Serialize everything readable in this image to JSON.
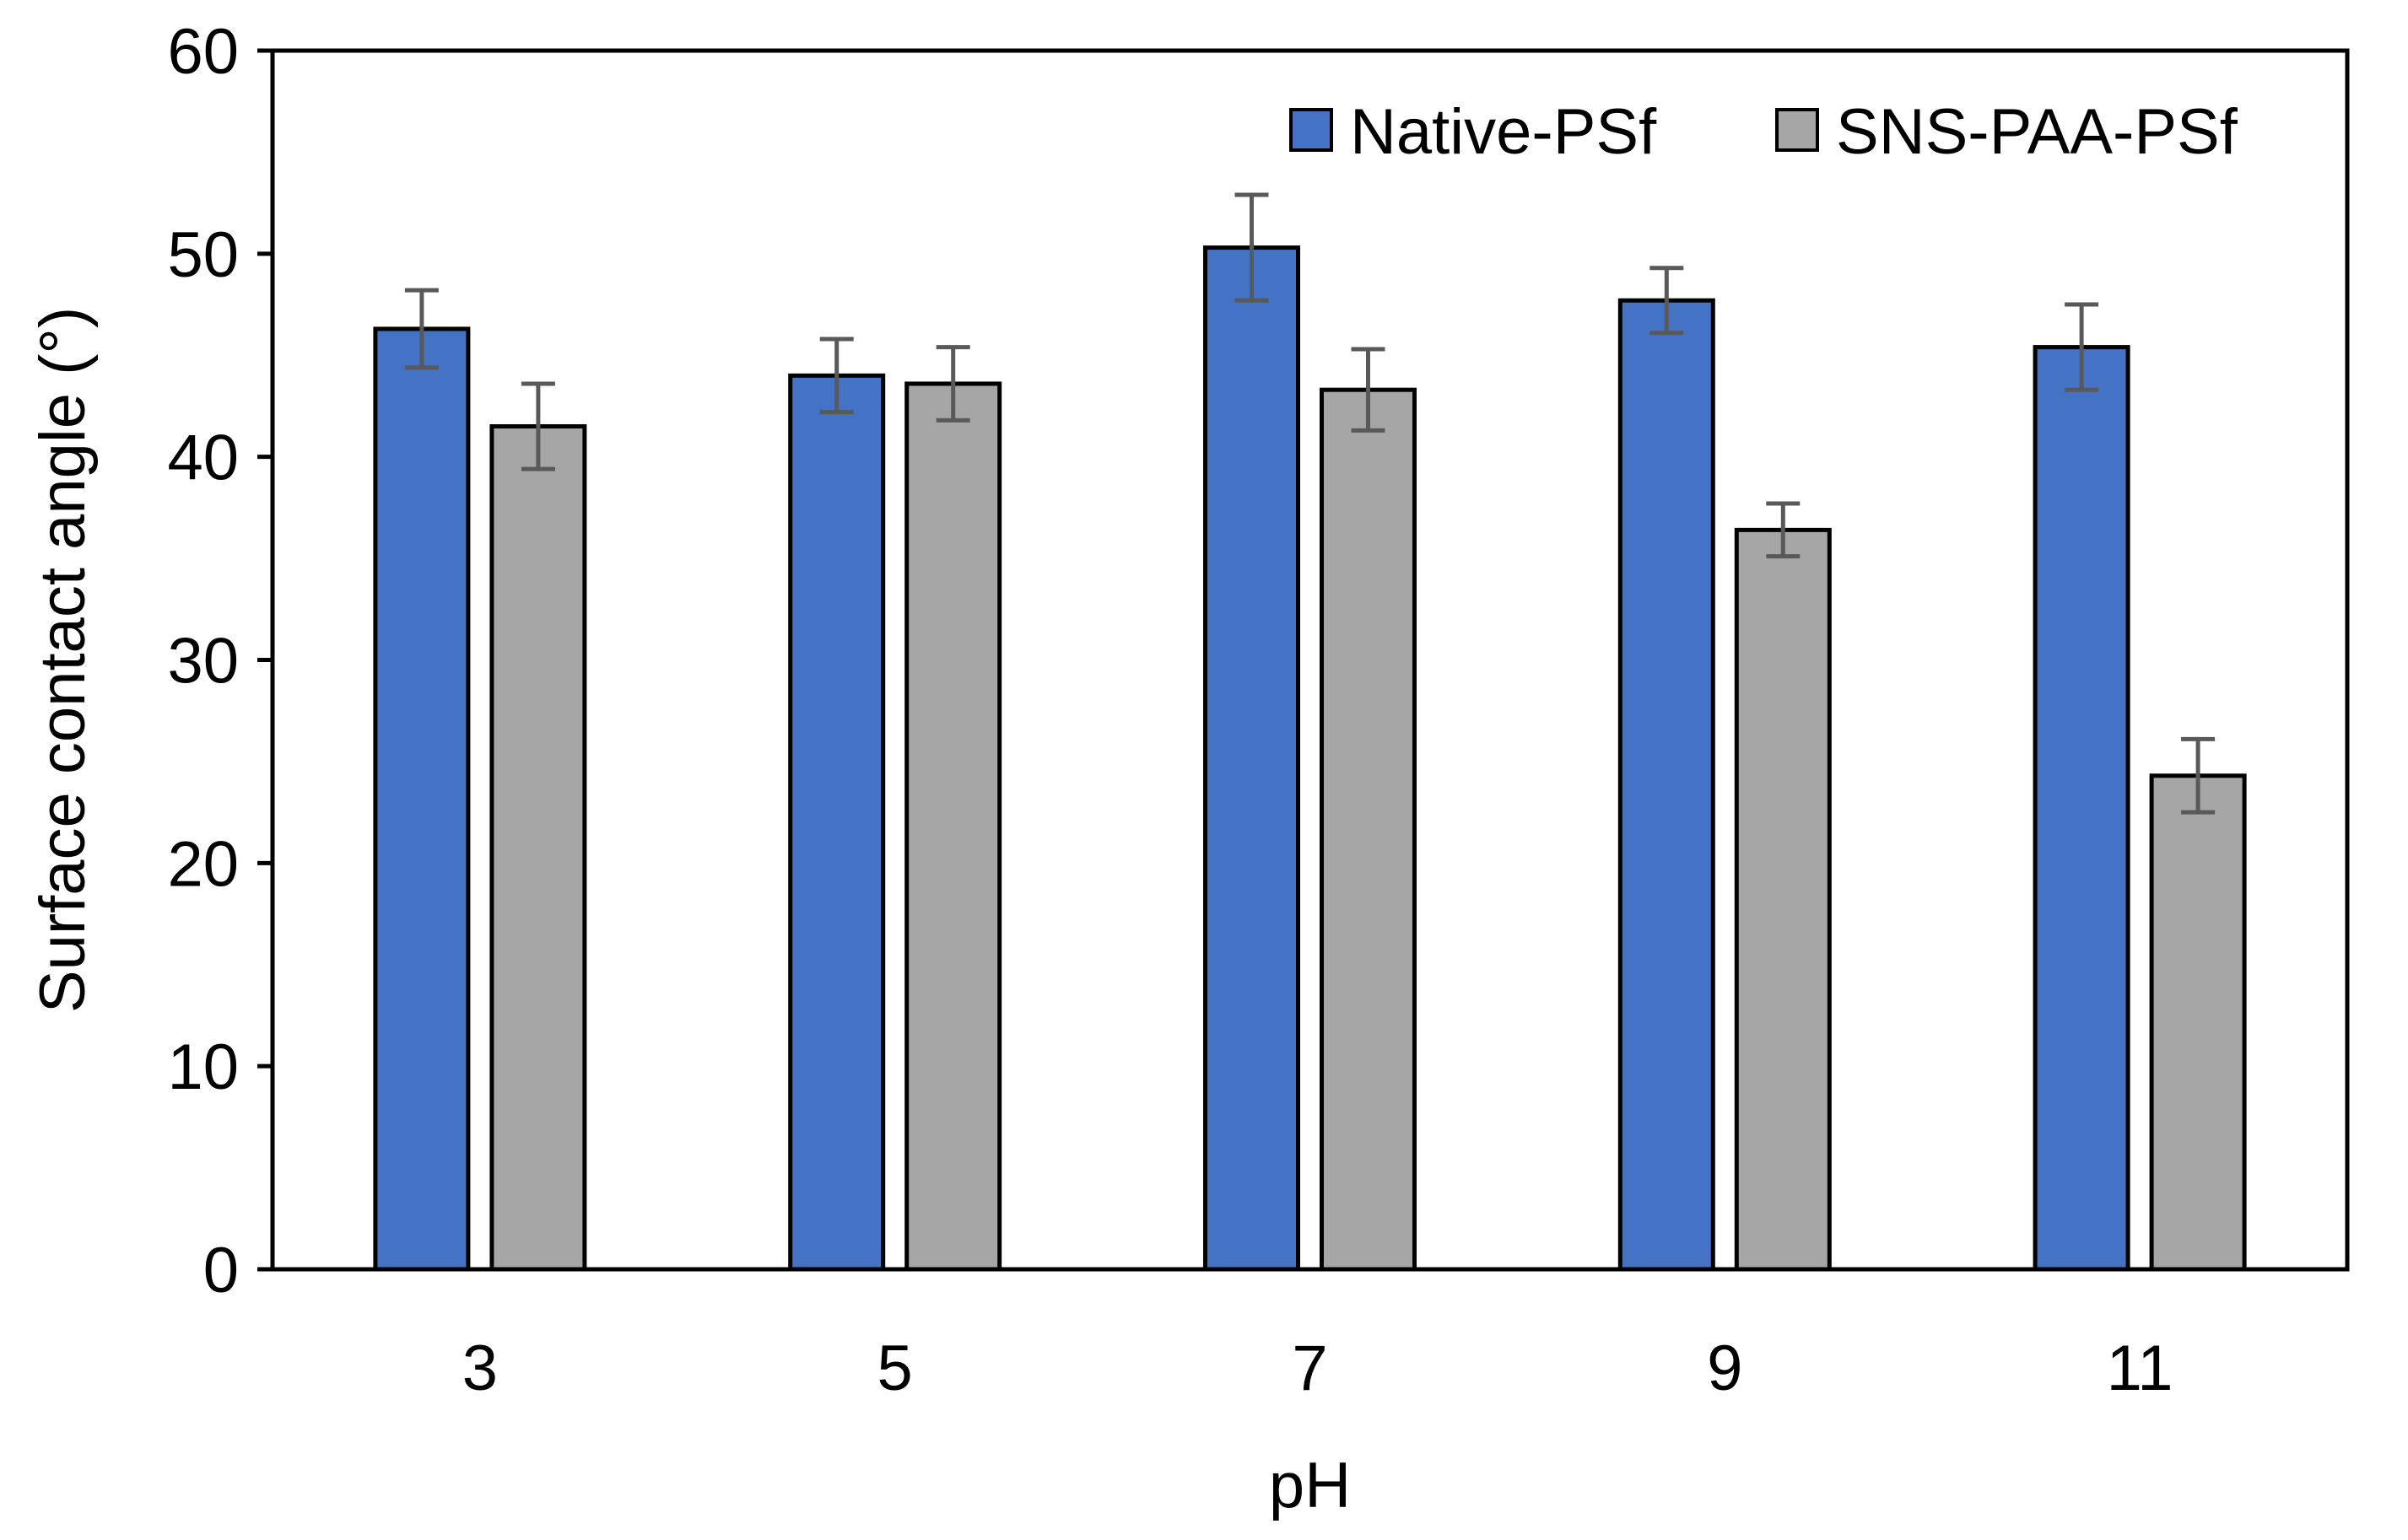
{
  "chart_data": {
    "type": "bar",
    "title": "",
    "xlabel": "pH",
    "ylabel": "Surface contact angle (°)",
    "categories": [
      "3",
      "5",
      "7",
      "9",
      "11"
    ],
    "ylim": [
      0,
      60
    ],
    "yticks": [
      0,
      10,
      20,
      30,
      40,
      50,
      60
    ],
    "grid": false,
    "legend": "top-right",
    "series": [
      {
        "name": "Native-PSf",
        "color": "#4472C4",
        "values": [
          46.3,
          44.0,
          50.3,
          47.7,
          45.4
        ],
        "errors": [
          1.9,
          1.8,
          2.6,
          1.6,
          2.1
        ]
      },
      {
        "name": "SNS-PAA-PSf",
        "color": "#A6A6A6",
        "values": [
          41.5,
          43.6,
          43.3,
          36.4,
          24.3
        ],
        "errors": [
          2.1,
          1.8,
          2.0,
          1.3,
          1.8
        ]
      }
    ]
  }
}
